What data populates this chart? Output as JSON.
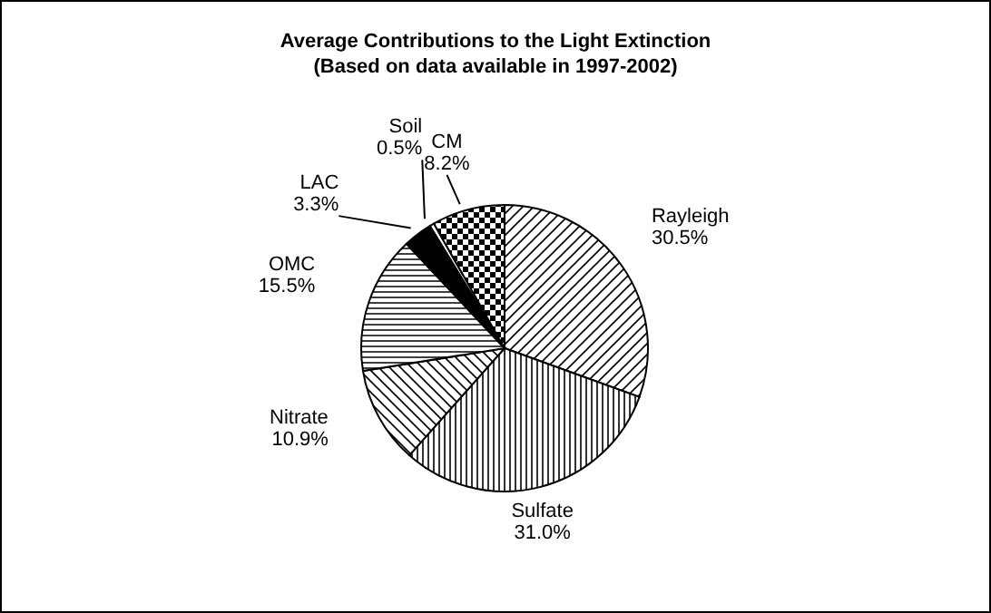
{
  "chart_data": {
    "type": "pie",
    "title": "Average Contributions to the Light Extinction",
    "subtitle": "(Based on data available in 1997-2002)",
    "categories": [
      "Rayleigh",
      "Sulfate",
      "Nitrate",
      "OMC",
      "LAC",
      "Soil",
      "CM"
    ],
    "values": [
      30.5,
      31.0,
      10.9,
      15.5,
      3.3,
      0.5,
      8.2
    ],
    "value_labels": [
      "30.5%",
      "31.0%",
      "10.9%",
      "15.5%",
      "3.3%",
      "0.5%",
      "8.2%"
    ],
    "colors": [
      "#000000",
      "#000000",
      "#000000",
      "#000000",
      "#000000",
      "#000000",
      "#000000"
    ],
    "legend": false
  }
}
